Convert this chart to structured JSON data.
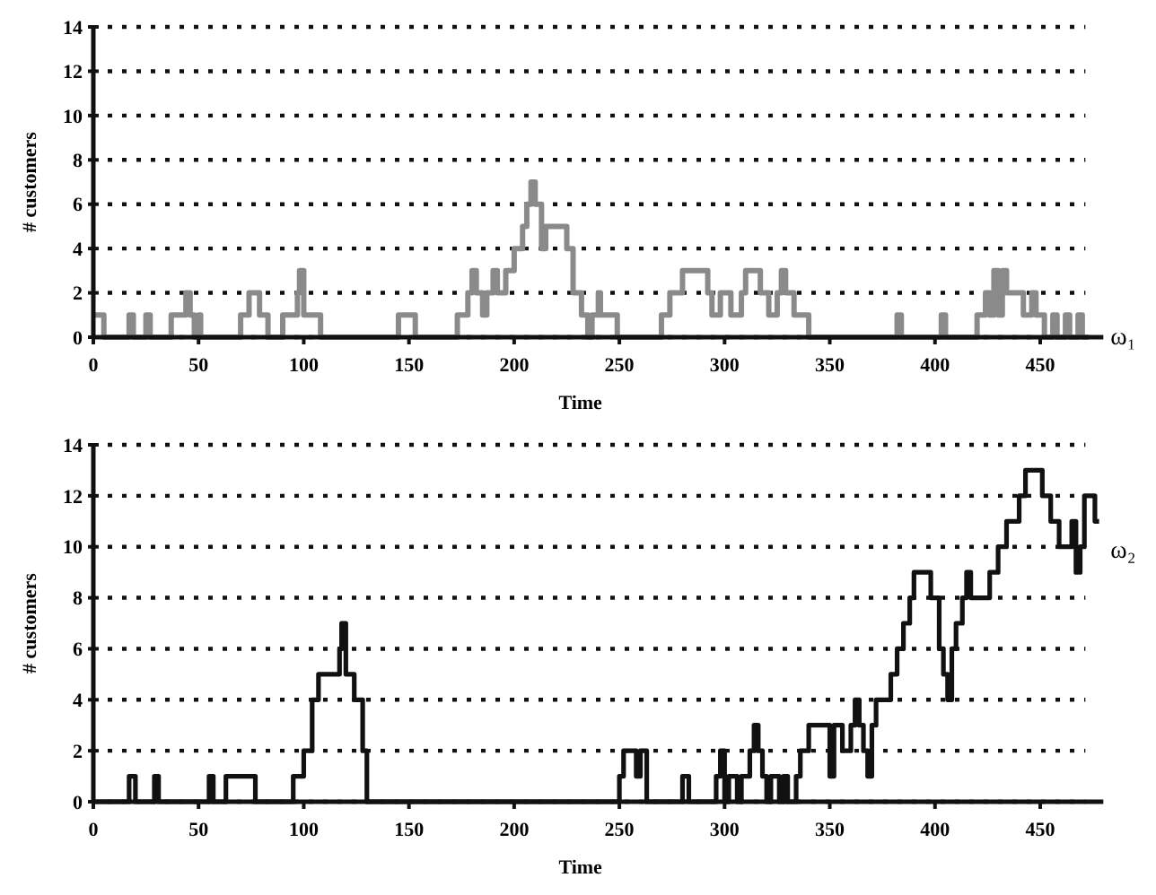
{
  "chart_data": [
    {
      "type": "step",
      "xlabel": "Time",
      "ylabel": "# customers",
      "annotations": [
        "ω₁"
      ],
      "xlim": [
        0,
        480
      ],
      "ylim": [
        0,
        14
      ],
      "xticks": [
        0,
        50,
        100,
        150,
        200,
        250,
        300,
        350,
        400,
        450
      ],
      "yticks": [
        0,
        2,
        4,
        6,
        8,
        10,
        12,
        14
      ],
      "grid": "y",
      "line_style": "solid",
      "series": [
        {
          "color": "#8a8a8a",
          "x": [
            0,
            5,
            17,
            19,
            25,
            27,
            37,
            44,
            46,
            48,
            50,
            51,
            70,
            74,
            79,
            83,
            90,
            97,
            98,
            100,
            104,
            108,
            145,
            153,
            173,
            178,
            180,
            182,
            185,
            187,
            190,
            192,
            196,
            200,
            204,
            206,
            208,
            210,
            213,
            215,
            222,
            225,
            228,
            232,
            235,
            237,
            240,
            241,
            245,
            249,
            270,
            274,
            280,
            292,
            294,
            298,
            303,
            308,
            310,
            317,
            321,
            325,
            327,
            329,
            333,
            340,
            382,
            384,
            403,
            405,
            420,
            424,
            426,
            428,
            430,
            432,
            434,
            442,
            446,
            448,
            452,
            456,
            458,
            462,
            464,
            468,
            470,
            473
          ],
          "values": [
            1,
            0,
            1,
            0,
            1,
            0,
            1,
            2,
            1,
            0,
            1,
            0,
            1,
            2,
            1,
            0,
            1,
            2,
            3,
            1,
            1,
            0,
            1,
            0,
            1,
            2,
            3,
            2,
            1,
            2,
            3,
            2,
            3,
            4,
            5,
            6,
            7,
            6,
            4,
            5,
            5,
            4,
            2,
            1,
            0,
            1,
            2,
            1,
            1,
            0,
            1,
            2,
            3,
            2,
            1,
            2,
            1,
            2,
            3,
            2,
            1,
            2,
            3,
            2,
            1,
            0,
            1,
            0,
            1,
            0,
            1,
            2,
            1,
            3,
            1,
            3,
            2,
            1,
            2,
            1,
            0,
            1,
            0,
            1,
            0,
            1,
            0,
            0
          ]
        }
      ]
    },
    {
      "type": "step",
      "xlabel": "Time",
      "ylabel": "# customers",
      "annotations": [
        "ω₂"
      ],
      "xlim": [
        0,
        480
      ],
      "ylim": [
        0,
        14
      ],
      "xticks": [
        0,
        50,
        100,
        150,
        200,
        250,
        300,
        350,
        400,
        450
      ],
      "yticks": [
        0,
        2,
        4,
        6,
        8,
        10,
        12,
        14
      ],
      "grid": "y",
      "line_style": "solid",
      "series": [
        {
          "color": "#111111",
          "x": [
            0,
            17,
            20,
            29,
            31,
            55,
            57,
            63,
            77,
            95,
            100,
            104,
            107,
            117,
            118,
            120,
            124,
            128,
            130,
            250,
            252,
            258,
            260,
            263,
            280,
            283,
            296,
            298,
            300,
            302,
            306,
            308,
            312,
            314,
            316,
            318,
            320,
            322,
            326,
            328,
            330,
            334,
            336,
            340,
            350,
            352,
            356,
            360,
            362,
            364,
            366,
            368,
            370,
            372,
            379,
            382,
            385,
            388,
            390,
            398,
            402,
            404,
            406,
            408,
            410,
            413,
            415,
            417,
            426,
            430,
            434,
            440,
            443,
            451,
            455,
            459,
            465,
            467,
            469,
            471,
            476,
            478
          ],
          "values": [
            0,
            1,
            0,
            1,
            0,
            1,
            0,
            1,
            0,
            1,
            2,
            4,
            5,
            6,
            7,
            5,
            4,
            2,
            0,
            1,
            2,
            1,
            2,
            0,
            1,
            0,
            1,
            2,
            0,
            1,
            0,
            1,
            2,
            3,
            2,
            1,
            0,
            1,
            0,
            1,
            0,
            1,
            2,
            3,
            1,
            3,
            2,
            3,
            4,
            3,
            2,
            1,
            3,
            4,
            5,
            6,
            7,
            8,
            9,
            8,
            6,
            5,
            4,
            6,
            7,
            8,
            9,
            8,
            9,
            10,
            11,
            12,
            13,
            12,
            11,
            10,
            11,
            9,
            10,
            12,
            11,
            11
          ]
        }
      ]
    }
  ]
}
